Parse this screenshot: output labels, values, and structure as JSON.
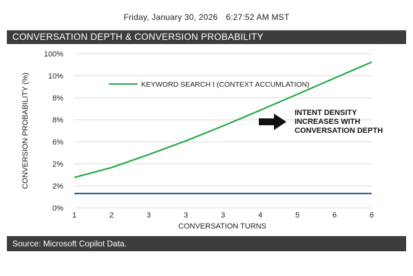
{
  "header": {
    "date": "Friday, January 30, 2026",
    "time": "6:27:52 AM MST"
  },
  "title": "CONVERSATION DEPTH & CONVERSION PROBABILITY",
  "source": "Source: Microsoft Copilot Data.",
  "colors": {
    "green_series": "#22aa4a",
    "blue_series": "#2a5a8c",
    "bar": "#3d3d3d",
    "grid": "#d9d9d9"
  },
  "chart_data": {
    "type": "line",
    "xlabel": "CONVERSATION TURNS",
    "ylabel": "CONVERSION PROBABILITY (%)",
    "x_ticks": [
      "1",
      "2",
      "3",
      "3",
      "3",
      "4",
      "5",
      "6",
      "6"
    ],
    "y_ticks": [
      "0%",
      "2%",
      "2%",
      "6%",
      "8%",
      "8%",
      "10%",
      "100%"
    ],
    "ylim": [
      0,
      7
    ],
    "grid": "horizontal",
    "legend_position": "top-left",
    "series": [
      {
        "name": "KEYWORD SEARCH I (CONTEXT ACCUMLATION)",
        "color": "#22aa4a",
        "points": [
          [
            0,
            1.38
          ],
          [
            1,
            1.83
          ],
          [
            2,
            2.42
          ],
          [
            3,
            3.04
          ],
          [
            4,
            3.72
          ],
          [
            5,
            4.43
          ],
          [
            6,
            5.16
          ],
          [
            7,
            5.89
          ],
          [
            8,
            6.62
          ]
        ]
      },
      {
        "name": "",
        "color": "#2a5a8c",
        "points": [
          [
            0,
            0.65
          ],
          [
            8,
            0.65
          ]
        ]
      }
    ],
    "annotation": {
      "lines": [
        "INTENT DENSITY",
        "INCREASES WITH",
        "CONVERSATION DEPTH"
      ]
    }
  }
}
